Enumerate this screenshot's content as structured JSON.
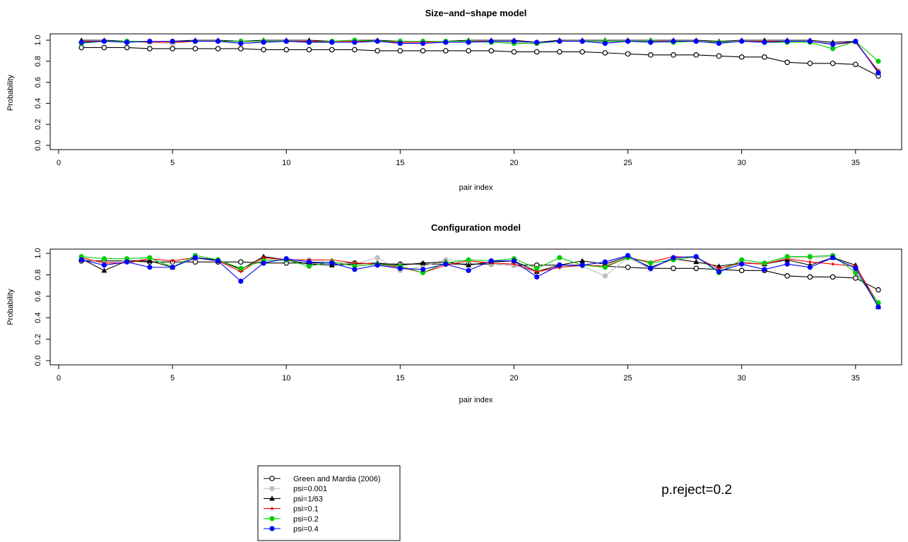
{
  "chart_data": [
    {
      "type": "line",
      "title": "Size−and−shape model",
      "xlabel": "pair index",
      "ylabel": "Probability",
      "xlim": [
        0,
        37
      ],
      "ylim": [
        0,
        1
      ],
      "x_ticks": [
        "0",
        "5",
        "10",
        "15",
        "20",
        "25",
        "30",
        "35"
      ],
      "y_ticks": [
        "0.0",
        "0.2",
        "0.4",
        "0.6",
        "0.8",
        "1.0"
      ],
      "x": [
        1,
        2,
        3,
        4,
        5,
        6,
        7,
        8,
        9,
        10,
        11,
        12,
        13,
        14,
        15,
        16,
        17,
        18,
        19,
        20,
        21,
        22,
        23,
        24,
        25,
        26,
        27,
        28,
        29,
        30,
        31,
        32,
        33,
        34,
        35,
        36
      ],
      "series": [
        {
          "name": "Green and Mardia (2006)",
          "color": "#000000",
          "marker": "open-circle",
          "values": [
            0.93,
            0.93,
            0.93,
            0.92,
            0.92,
            0.92,
            0.92,
            0.92,
            0.91,
            0.91,
            0.91,
            0.91,
            0.91,
            0.9,
            0.9,
            0.9,
            0.9,
            0.9,
            0.9,
            0.89,
            0.89,
            0.89,
            0.89,
            0.88,
            0.87,
            0.86,
            0.86,
            0.86,
            0.85,
            0.84,
            0.84,
            0.79,
            0.78,
            0.78,
            0.77,
            0.66
          ]
        },
        {
          "name": "psi=0.001",
          "color": "#bebebe",
          "marker": "filled-circle",
          "values": [
            0.98,
            0.99,
            0.99,
            0.98,
            0.97,
            0.99,
            0.99,
            0.98,
            0.99,
            0.99,
            0.98,
            0.99,
            0.99,
            0.99,
            0.98,
            0.98,
            0.99,
            0.99,
            0.98,
            0.98,
            0.97,
            0.99,
            0.99,
            0.98,
            0.99,
            0.99,
            0.99,
            0.99,
            0.98,
            0.99,
            0.98,
            0.99,
            0.99,
            0.97,
            0.98,
            0.71
          ]
        },
        {
          "name": "psi=1/63",
          "color": "#000000",
          "marker": "filled-triangle",
          "values": [
            1.0,
            1.0,
            0.99,
            0.99,
            0.99,
            1.0,
            1.0,
            0.99,
            1.0,
            1.0,
            1.0,
            0.99,
            1.0,
            1.0,
            0.99,
            0.99,
            0.99,
            1.0,
            1.0,
            1.0,
            0.98,
            1.0,
            1.0,
            1.0,
            1.0,
            1.0,
            1.0,
            1.0,
            0.99,
            1.0,
            1.0,
            1.0,
            1.0,
            0.98,
            0.99,
            0.7
          ]
        },
        {
          "name": "psi=0.1",
          "color": "#ff0000",
          "marker": "small-diamond",
          "values": [
            0.99,
            0.99,
            0.99,
            0.98,
            0.98,
            0.99,
            0.99,
            0.99,
            0.99,
            0.99,
            0.99,
            0.99,
            0.99,
            0.99,
            0.98,
            0.98,
            0.99,
            0.99,
            0.99,
            0.99,
            0.98,
            0.99,
            0.99,
            0.99,
            0.99,
            0.99,
            0.99,
            0.99,
            0.98,
            0.99,
            0.99,
            0.99,
            0.99,
            0.96,
            0.98,
            0.71
          ]
        },
        {
          "name": "psi=0.2",
          "color": "#00cd00",
          "marker": "filled-circle",
          "values": [
            0.97,
            0.99,
            0.99,
            0.99,
            0.99,
            0.99,
            0.99,
            0.99,
            0.99,
            0.99,
            0.98,
            0.99,
            1.0,
            0.99,
            0.99,
            0.99,
            0.99,
            0.99,
            0.98,
            0.97,
            0.97,
            0.99,
            0.99,
            0.99,
            0.99,
            0.99,
            0.98,
            0.99,
            0.98,
            0.99,
            0.98,
            0.98,
            0.98,
            0.92,
            0.99,
            0.8
          ]
        },
        {
          "name": "psi=0.4",
          "color": "#0000ff",
          "marker": "filled-circle",
          "values": [
            0.98,
            0.99,
            0.98,
            0.99,
            0.99,
            0.99,
            0.99,
            0.97,
            0.98,
            0.99,
            0.98,
            0.98,
            0.98,
            0.99,
            0.97,
            0.97,
            0.98,
            0.98,
            0.99,
            0.99,
            0.98,
            0.99,
            0.99,
            0.97,
            0.99,
            0.98,
            0.99,
            0.99,
            0.97,
            0.99,
            0.98,
            0.99,
            0.99,
            0.96,
            0.99,
            0.69
          ]
        }
      ]
    },
    {
      "type": "line",
      "title": "Configuration model",
      "xlabel": "pair index",
      "ylabel": "Probability",
      "xlim": [
        0,
        37
      ],
      "ylim": [
        0,
        1
      ],
      "x_ticks": [
        "0",
        "5",
        "10",
        "15",
        "20",
        "25",
        "30",
        "35"
      ],
      "y_ticks": [
        "0.0",
        "0.2",
        "0.4",
        "0.6",
        "0.8",
        "1.0"
      ],
      "x": [
        1,
        2,
        3,
        4,
        5,
        6,
        7,
        8,
        9,
        10,
        11,
        12,
        13,
        14,
        15,
        16,
        17,
        18,
        19,
        20,
        21,
        22,
        23,
        24,
        25,
        26,
        27,
        28,
        29,
        30,
        31,
        32,
        33,
        34,
        35,
        36
      ],
      "series": [
        {
          "name": "Green and Mardia (2006)",
          "color": "#000000",
          "marker": "open-circle",
          "values": [
            0.93,
            0.93,
            0.93,
            0.92,
            0.92,
            0.92,
            0.92,
            0.92,
            0.91,
            0.91,
            0.91,
            0.91,
            0.91,
            0.9,
            0.9,
            0.9,
            0.9,
            0.9,
            0.9,
            0.89,
            0.89,
            0.89,
            0.89,
            0.88,
            0.87,
            0.86,
            0.86,
            0.86,
            0.85,
            0.84,
            0.84,
            0.79,
            0.78,
            0.78,
            0.77,
            0.66
          ]
        },
        {
          "name": "psi=0.001",
          "color": "#bebebe",
          "marker": "filled-circle",
          "values": [
            0.95,
            0.91,
            0.93,
            0.95,
            0.88,
            0.95,
            0.93,
            0.85,
            0.95,
            0.93,
            0.94,
            0.92,
            0.9,
            0.96,
            0.84,
            0.88,
            0.94,
            0.93,
            0.9,
            0.89,
            0.82,
            0.87,
            0.88,
            0.79,
            0.96,
            0.85,
            0.95,
            0.96,
            0.84,
            0.92,
            0.9,
            0.96,
            0.96,
            0.97,
            0.87,
            0.51
          ]
        },
        {
          "name": "psi=1/63",
          "color": "#000000",
          "marker": "filled-triangle",
          "values": [
            0.95,
            0.84,
            0.93,
            0.93,
            0.87,
            0.96,
            0.94,
            0.85,
            0.97,
            0.94,
            0.9,
            0.89,
            0.9,
            0.91,
            0.89,
            0.91,
            0.92,
            0.89,
            0.92,
            0.93,
            0.83,
            0.89,
            0.93,
            0.9,
            0.97,
            0.87,
            0.95,
            0.92,
            0.88,
            0.91,
            0.9,
            0.94,
            0.89,
            0.96,
            0.89,
            0.5
          ]
        },
        {
          "name": "psi=0.1",
          "color": "#ff0000",
          "marker": "small-diamond",
          "values": [
            0.96,
            0.91,
            0.91,
            0.95,
            0.93,
            0.96,
            0.93,
            0.83,
            0.96,
            0.94,
            0.94,
            0.94,
            0.91,
            0.9,
            0.87,
            0.82,
            0.89,
            0.93,
            0.91,
            0.9,
            0.83,
            0.87,
            0.89,
            0.88,
            0.96,
            0.92,
            0.97,
            0.96,
            0.86,
            0.91,
            0.9,
            0.95,
            0.92,
            0.9,
            0.88,
            0.53
          ]
        },
        {
          "name": "psi=0.2",
          "color": "#00cd00",
          "marker": "filled-circle",
          "values": [
            0.97,
            0.95,
            0.95,
            0.96,
            0.87,
            0.98,
            0.94,
            0.86,
            0.93,
            0.94,
            0.88,
            0.92,
            0.88,
            0.9,
            0.88,
            0.82,
            0.91,
            0.94,
            0.93,
            0.95,
            0.86,
            0.96,
            0.89,
            0.87,
            0.96,
            0.91,
            0.94,
            0.97,
            0.82,
            0.94,
            0.91,
            0.97,
            0.97,
            0.98,
            0.82,
            0.54
          ]
        },
        {
          "name": "psi=0.4",
          "color": "#0000ff",
          "marker": "filled-circle",
          "values": [
            0.94,
            0.89,
            0.92,
            0.87,
            0.87,
            0.96,
            0.93,
            0.74,
            0.91,
            0.95,
            0.92,
            0.91,
            0.85,
            0.89,
            0.86,
            0.85,
            0.9,
            0.84,
            0.93,
            0.93,
            0.78,
            0.89,
            0.89,
            0.92,
            0.98,
            0.86,
            0.96,
            0.97,
            0.83,
            0.9,
            0.85,
            0.9,
            0.87,
            0.96,
            0.86,
            0.5
          ]
        }
      ]
    }
  ],
  "legend": {
    "placement": "bottom-center",
    "entries": [
      {
        "label": "Green and Mardia (2006)",
        "color": "#000000",
        "marker": "open-circle"
      },
      {
        "label": "psi=0.001",
        "color": "#bebebe",
        "marker": "filled-circle"
      },
      {
        "label": "psi=1/63",
        "color": "#000000",
        "marker": "filled-triangle"
      },
      {
        "label": "psi=0.1",
        "color": "#ff0000",
        "marker": "small-diamond"
      },
      {
        "label": "psi=0.2",
        "color": "#00cd00",
        "marker": "filled-circle"
      },
      {
        "label": "psi=0.4",
        "color": "#0000ff",
        "marker": "filled-circle"
      }
    ]
  },
  "annotation": "p.reject=0.2"
}
